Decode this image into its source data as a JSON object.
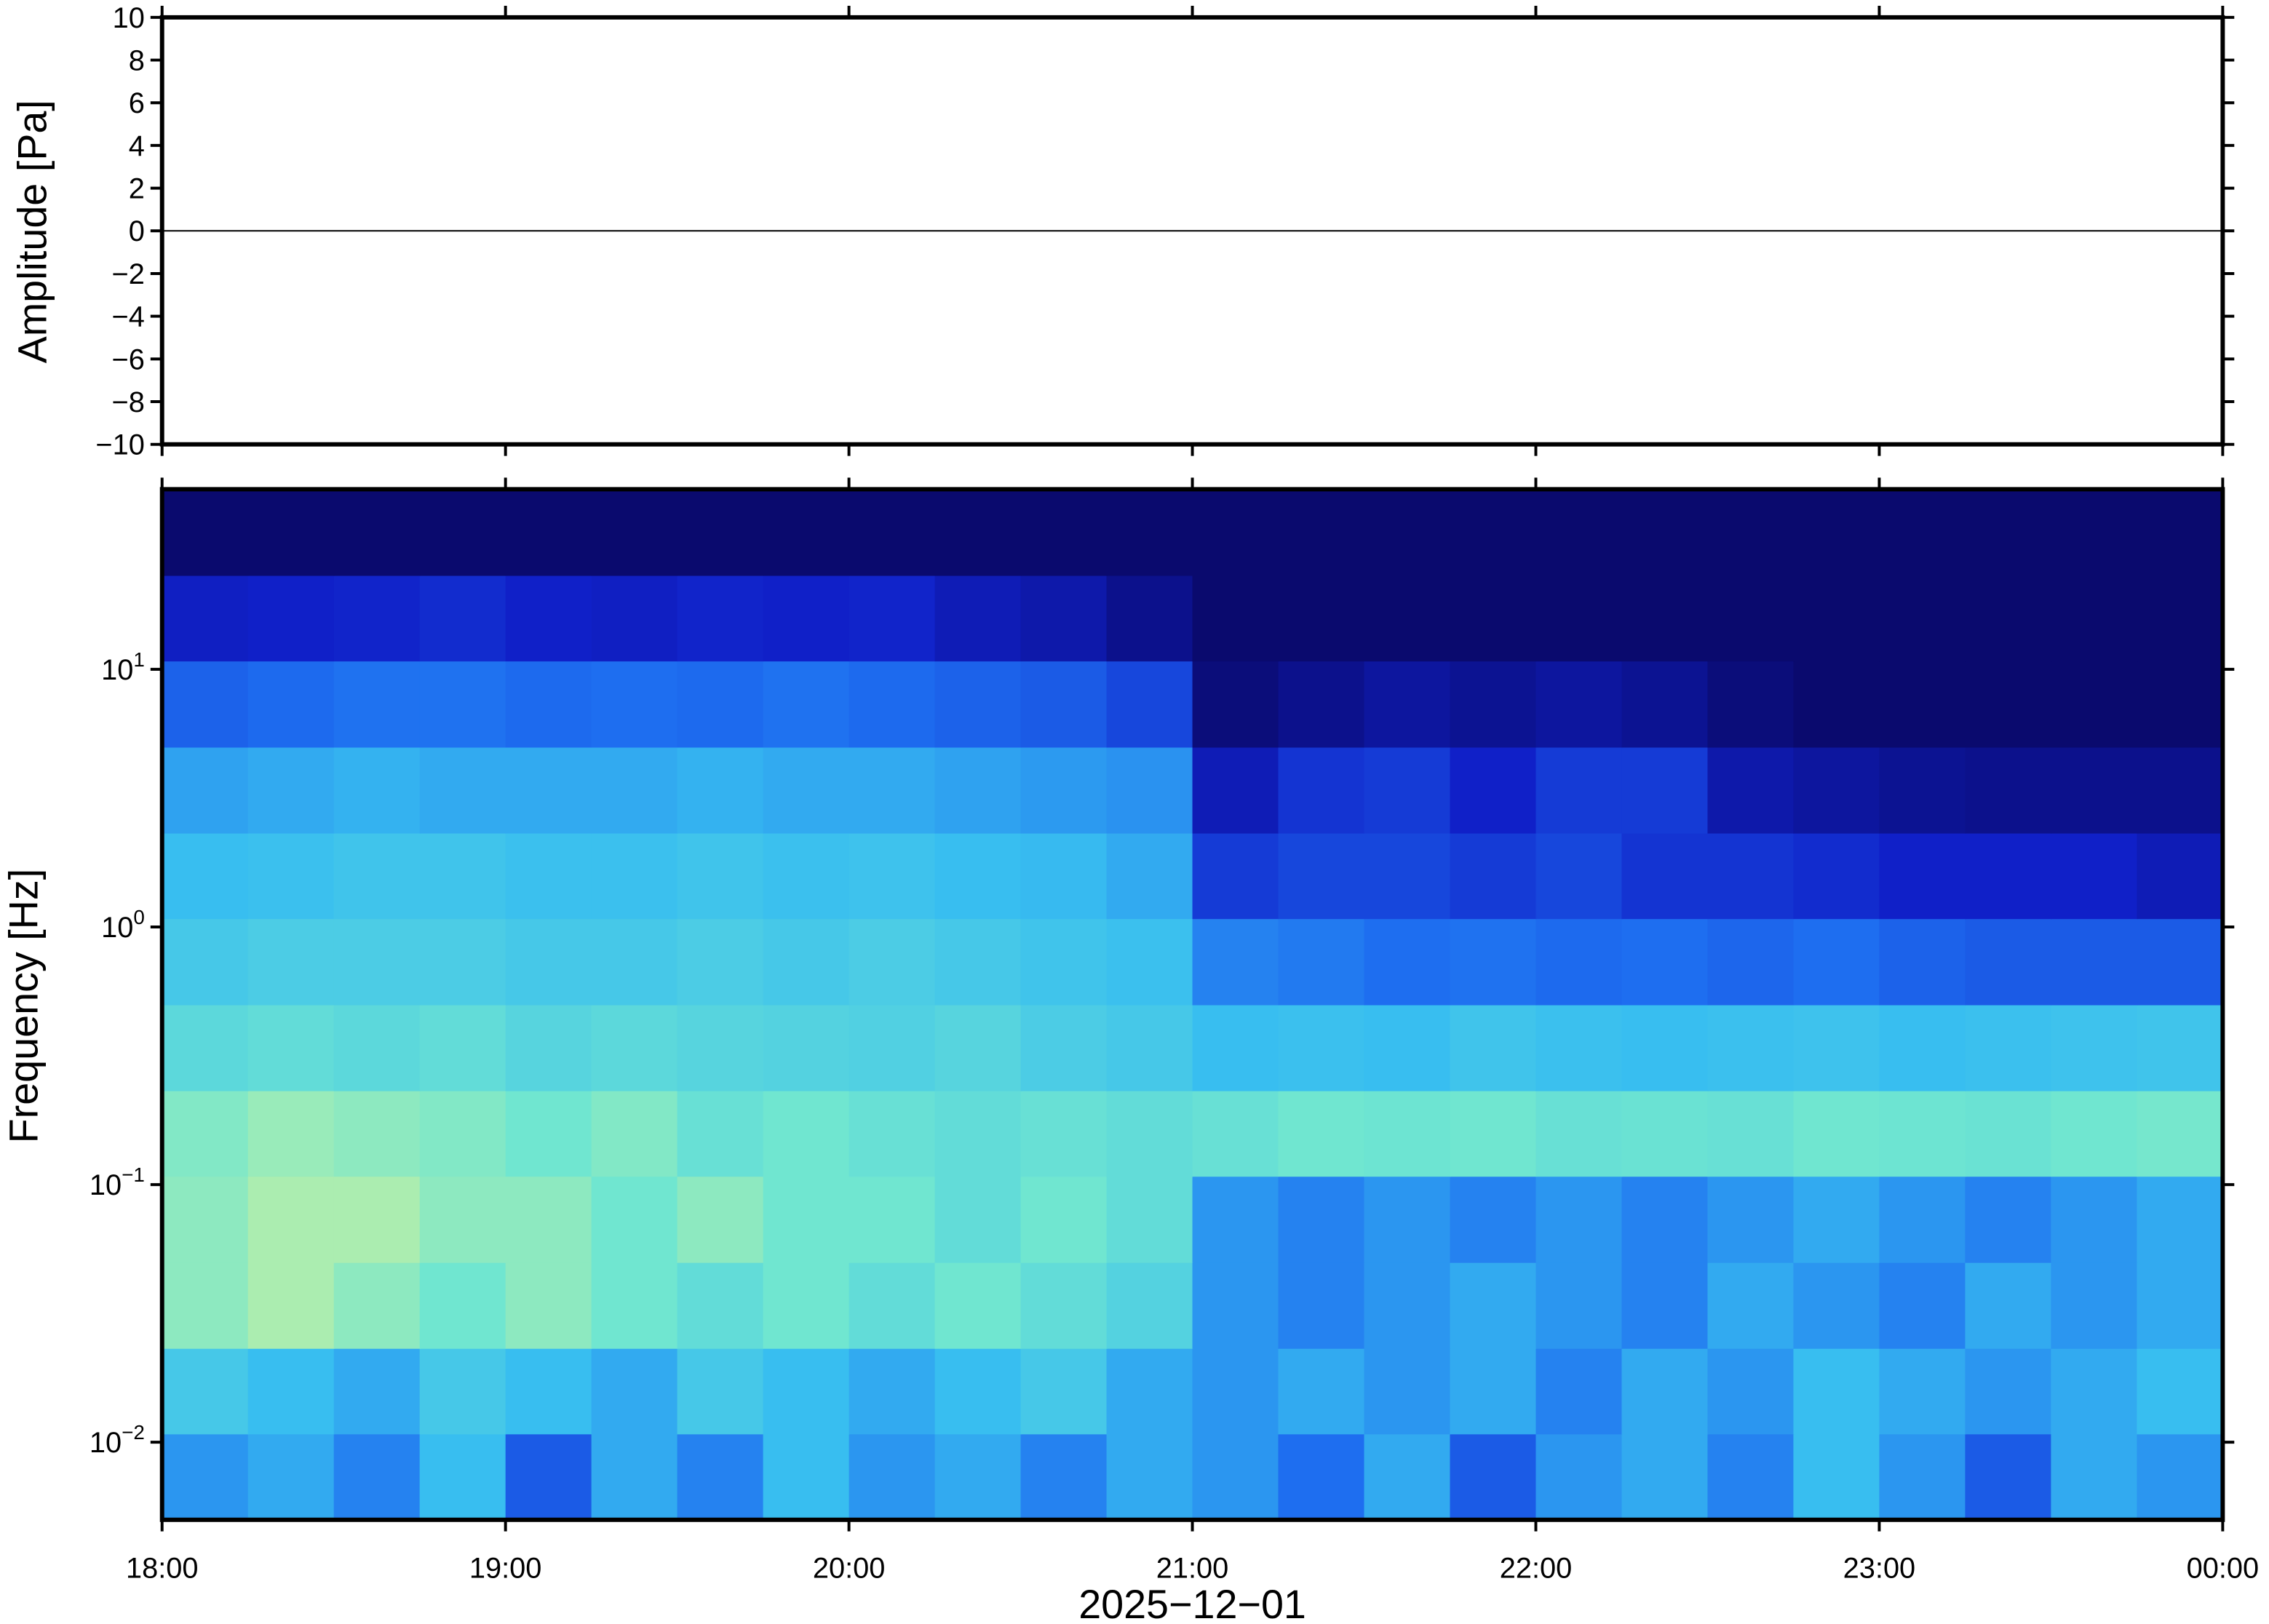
{
  "chart_data": [
    {
      "type": "line",
      "ylabel": "Amplitude [Pa]",
      "x": [
        18,
        18.5,
        19,
        19.5,
        20,
        20.5,
        21,
        21.5,
        22,
        22.5,
        23,
        23.5,
        24
      ],
      "series": [
        {
          "color": "#000000",
          "values": [
            0,
            0,
            0,
            0,
            0,
            0,
            0,
            0,
            0,
            0,
            0,
            0,
            0
          ]
        }
      ],
      "xlim": [
        18,
        24
      ],
      "xticks": [
        18,
        19,
        20,
        21,
        22,
        23,
        24
      ],
      "ylim": [
        -10,
        10
      ],
      "yticks": [
        {
          "value": -10,
          "label": "−10"
        },
        {
          "value": -8,
          "label": "−8"
        },
        {
          "value": -6,
          "label": "−6"
        },
        {
          "value": -4,
          "label": "−4"
        },
        {
          "value": -2,
          "label": "−2"
        },
        0,
        2,
        4,
        6,
        8,
        10
      ]
    },
    {
      "type": "heatmap",
      "ylabel": "Frequency [Hz]",
      "xlabel": "2025−12−01",
      "log_y": true,
      "xlim": [
        18,
        24
      ],
      "xticks": [
        {
          "value": 18,
          "label": "18:00"
        },
        {
          "value": 19,
          "label": "19:00"
        },
        {
          "value": 20,
          "label": "20:00"
        },
        {
          "value": 21,
          "label": "21:00"
        },
        {
          "value": 22,
          "label": "22:00"
        },
        {
          "value": 23,
          "label": "23:00"
        },
        {
          "value": 24,
          "label": "00:00"
        }
      ],
      "ylim": [
        0.005,
        50
      ],
      "yticks": [
        {
          "value": 0.01,
          "label": "10",
          "exponent": "−2"
        },
        {
          "value": 0.1,
          "label": "10",
          "exponent": "−1"
        },
        {
          "value": 1,
          "label": "10",
          "exponent": "0"
        },
        {
          "value": 10,
          "label": "10",
          "exponent": "1"
        }
      ],
      "x_edges": [
        18,
        18.25,
        18.5,
        18.75,
        19,
        19.25,
        19.5,
        19.75,
        20,
        20.25,
        20.5,
        20.75,
        21,
        21.25,
        21.5,
        21.75,
        22,
        22.25,
        22.5,
        22.75,
        23,
        23.25,
        23.5,
        23.75,
        24
      ],
      "y_edges": [
        0.005,
        0.0108,
        0.0232,
        0.05,
        0.108,
        0.232,
        0.5,
        1.08,
        2.32,
        5,
        10.8,
        23.2,
        50
      ],
      "colormap": [
        [
          0,
          "#0a0a6e"
        ],
        [
          0.15,
          "#1020c8"
        ],
        [
          0.35,
          "#1e6ef0"
        ],
        [
          0.55,
          "#38bef0"
        ],
        [
          0.75,
          "#70e6d0"
        ],
        [
          0.9,
          "#c8f0a0"
        ],
        [
          1,
          "#f0f090"
        ]
      ],
      "z": [
        [
          0.45,
          0.5,
          0.4,
          0.55,
          0.3,
          0.5,
          0.4,
          0.55,
          0.45,
          0.5,
          0.4,
          0.5,
          0.45,
          0.35,
          0.5,
          0.3,
          0.45,
          0.5,
          0.4,
          0.55,
          0.45,
          0.3,
          0.5,
          0.45
        ],
        [
          0.6,
          0.55,
          0.5,
          0.6,
          0.55,
          0.5,
          0.6,
          0.55,
          0.5,
          0.55,
          0.6,
          0.5,
          0.45,
          0.5,
          0.45,
          0.5,
          0.4,
          0.5,
          0.45,
          0.55,
          0.5,
          0.45,
          0.5,
          0.55
        ],
        [
          0.8,
          0.85,
          0.8,
          0.75,
          0.8,
          0.75,
          0.7,
          0.75,
          0.7,
          0.75,
          0.7,
          0.65,
          0.45,
          0.4,
          0.45,
          0.5,
          0.45,
          0.4,
          0.5,
          0.45,
          0.4,
          0.5,
          0.45,
          0.5
        ],
        [
          0.8,
          0.85,
          0.85,
          0.8,
          0.8,
          0.75,
          0.8,
          0.75,
          0.75,
          0.7,
          0.75,
          0.7,
          0.45,
          0.4,
          0.45,
          0.4,
          0.45,
          0.4,
          0.45,
          0.5,
          0.45,
          0.4,
          0.45,
          0.5
        ],
        [
          0.78,
          0.82,
          0.8,
          0.78,
          0.75,
          0.78,
          0.72,
          0.75,
          0.72,
          0.7,
          0.72,
          0.7,
          0.72,
          0.75,
          0.74,
          0.75,
          0.72,
          0.73,
          0.72,
          0.75,
          0.74,
          0.73,
          0.75,
          0.76
        ],
        [
          0.68,
          0.7,
          0.68,
          0.7,
          0.66,
          0.68,
          0.66,
          0.65,
          0.64,
          0.66,
          0.62,
          0.6,
          0.55,
          0.56,
          0.55,
          0.58,
          0.56,
          0.55,
          0.56,
          0.57,
          0.55,
          0.56,
          0.57,
          0.58
        ],
        [
          0.6,
          0.62,
          0.62,
          0.62,
          0.6,
          0.6,
          0.62,
          0.6,
          0.62,
          0.6,
          0.58,
          0.56,
          0.4,
          0.38,
          0.35,
          0.36,
          0.34,
          0.35,
          0.33,
          0.35,
          0.32,
          0.3,
          0.3,
          0.3
        ],
        [
          0.55,
          0.56,
          0.58,
          0.58,
          0.56,
          0.56,
          0.58,
          0.56,
          0.57,
          0.55,
          0.54,
          0.5,
          0.22,
          0.25,
          0.25,
          0.22,
          0.25,
          0.2,
          0.2,
          0.18,
          0.15,
          0.15,
          0.15,
          0.12
        ],
        [
          0.48,
          0.5,
          0.52,
          0.5,
          0.5,
          0.5,
          0.52,
          0.5,
          0.5,
          0.48,
          0.46,
          0.44,
          0.12,
          0.2,
          0.22,
          0.15,
          0.22,
          0.22,
          0.1,
          0.08,
          0.06,
          0.05,
          0.05,
          0.05
        ],
        [
          0.32,
          0.34,
          0.36,
          0.36,
          0.34,
          0.35,
          0.34,
          0.36,
          0.34,
          0.32,
          0.3,
          0.25,
          0.02,
          0.05,
          0.08,
          0.06,
          0.08,
          0.06,
          0.02,
          0,
          0,
          0,
          0,
          0
        ],
        [
          0.14,
          0.15,
          0.16,
          0.18,
          0.15,
          0.14,
          0.16,
          0.15,
          0.16,
          0.12,
          0.1,
          0.05,
          0,
          0,
          0,
          0,
          0,
          0,
          0,
          0,
          0,
          0,
          0,
          0
        ],
        [
          0,
          0,
          0,
          0,
          0,
          0,
          0,
          0,
          0,
          0,
          0,
          0,
          0,
          0,
          0,
          0,
          0,
          0,
          0,
          0,
          0,
          0,
          0,
          0
        ]
      ]
    }
  ]
}
